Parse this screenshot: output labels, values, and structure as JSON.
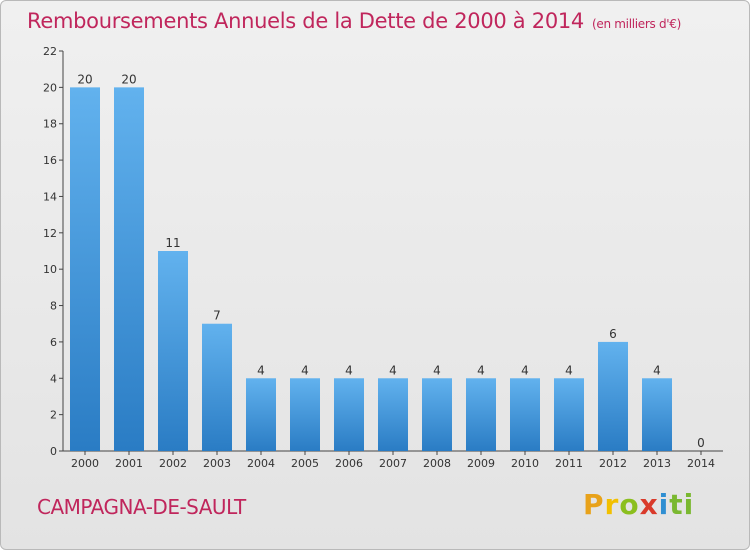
{
  "chart_data": {
    "type": "bar",
    "title": "Remboursements Annuels de la Dette de 2000 à 2014",
    "subtitle": "(en milliers d'€)",
    "categories": [
      "2000",
      "2001",
      "2002",
      "2003",
      "2004",
      "2005",
      "2006",
      "2007",
      "2008",
      "2009",
      "2010",
      "2011",
      "2012",
      "2013",
      "2014"
    ],
    "values": [
      20,
      20,
      11,
      7,
      4,
      4,
      4,
      4,
      4,
      4,
      4,
      4,
      6,
      4,
      0
    ],
    "data_labels": [
      "20",
      "20",
      "11",
      "7",
      "4",
      "4",
      "4",
      "4",
      "4",
      "4",
      "4",
      "4",
      "6",
      "4",
      "0"
    ],
    "ylim": [
      0,
      22
    ],
    "yticks": [
      0,
      2,
      4,
      6,
      8,
      10,
      12,
      14,
      16,
      18,
      20,
      22
    ],
    "xlabel": "",
    "ylabel": "",
    "grid": false,
    "bar_color": "#3a8fd6"
  },
  "footer": {
    "commune": "CAMPAGNA-DE-SAULT"
  },
  "logo": {
    "l1": "P",
    "l2": "r",
    "l3": "o",
    "l4": "x",
    "l5": "i",
    "l6": "ti"
  }
}
